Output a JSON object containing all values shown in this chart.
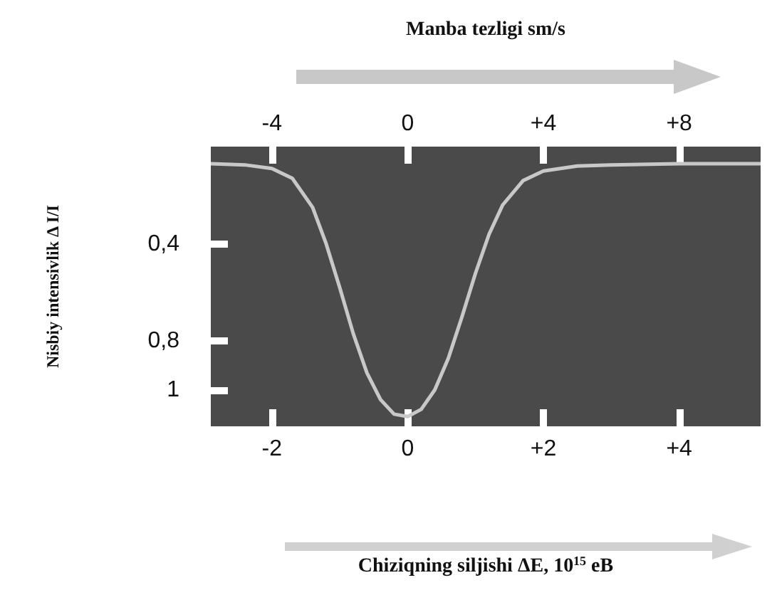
{
  "chart_data": {
    "type": "line",
    "xlabel": "Chiziqning siljishi ΔE, 10$^{15}$ eB",
    "x2label": "Manba tezligi sm/s",
    "ylabel": "Nisbiy intensivlik Δ I/I",
    "xlim": [
      -2.9,
      5.2
    ],
    "xticks": [
      -2,
      0,
      {
        "value": 2,
        "label": "+2"
      },
      {
        "value": 4,
        "label": "+4"
      }
    ],
    "x2lim": [
      -5.8,
      10.4
    ],
    "x2ticks": [
      -4,
      0,
      {
        "value": 4,
        "label": "+4"
      },
      {
        "value": 8,
        "label": "+8"
      }
    ],
    "ylim": [
      1.15,
      0
    ],
    "yticks": [
      {
        "value": 0.4,
        "label": "0,4"
      },
      {
        "value": 0.8,
        "label": "0,8"
      },
      1
    ],
    "grid": false,
    "marker": "none",
    "line_style": "solid",
    "series": [
      {
        "color": "#c8c8c8",
        "x": [
          -2.9,
          -2.4,
          -2.0,
          -1.7,
          -1.4,
          -1.2,
          -1.0,
          -0.8,
          -0.6,
          -0.4,
          -0.2,
          0,
          0.2,
          0.4,
          0.6,
          0.8,
          1.0,
          1.2,
          1.4,
          1.7,
          2.0,
          2.5,
          3.0,
          4.0,
          5.2
        ],
        "values": [
          0.07,
          0.075,
          0.09,
          0.13,
          0.25,
          0.4,
          0.58,
          0.77,
          0.93,
          1.04,
          1.1,
          1.11,
          1.08,
          1.0,
          0.87,
          0.7,
          0.52,
          0.36,
          0.24,
          0.14,
          0.1,
          0.08,
          0.075,
          0.07,
          0.07
        ]
      }
    ]
  }
}
